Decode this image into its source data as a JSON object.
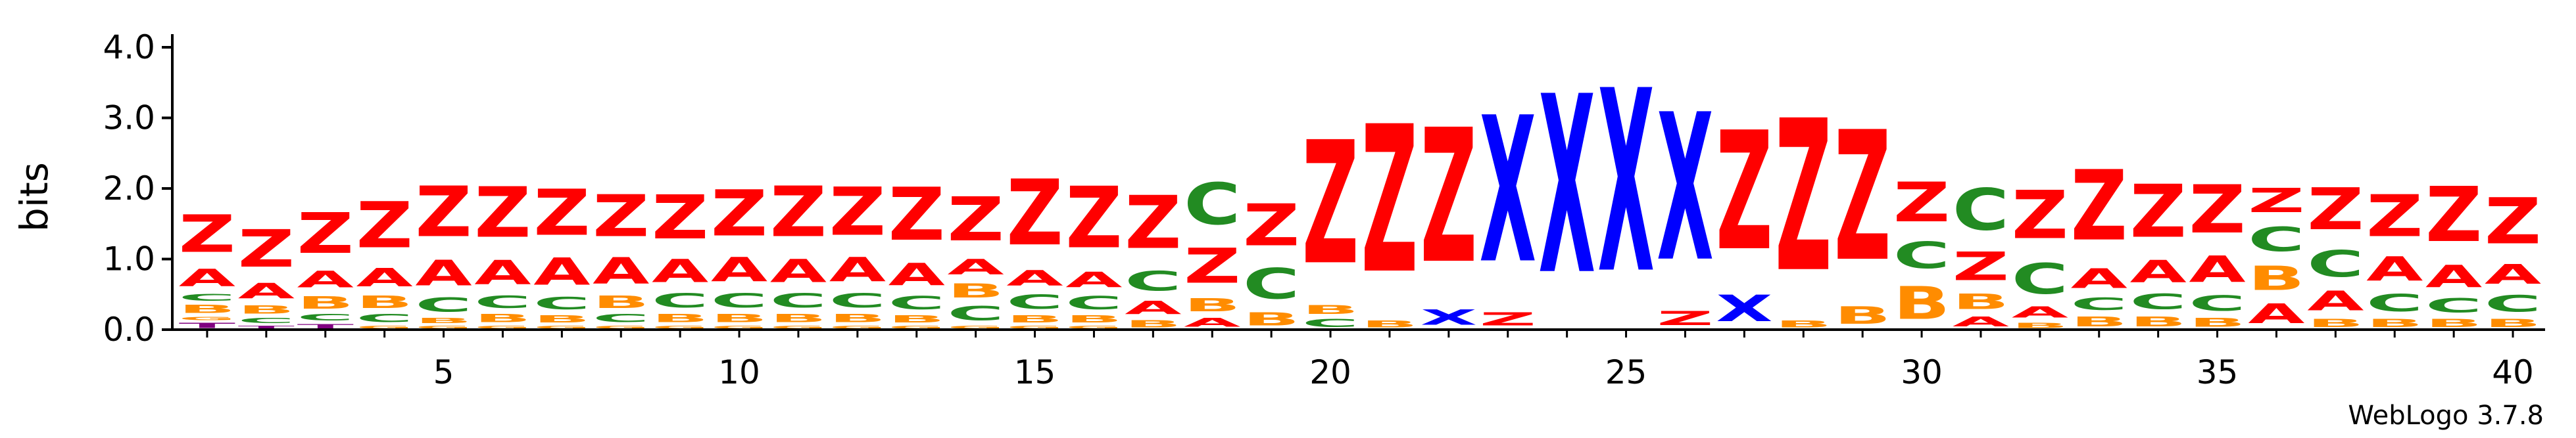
{
  "chart_data": {
    "type": "sequence-logo",
    "title": "",
    "xlabel": "",
    "ylabel": "bits",
    "ylim": [
      0,
      4.2
    ],
    "y_ticks": [
      "0.0",
      "1.0",
      "2.0",
      "3.0",
      "4.0"
    ],
    "x_ticks": [
      "5",
      "10",
      "15",
      "20",
      "25",
      "30",
      "35",
      "40"
    ],
    "positions": 40,
    "credit": "WebLogo 3.7.8",
    "colors": {
      "Z": "#ff0000",
      "A": "#ff0000",
      "C": "#228b22",
      "B": "#ff8c00",
      "X": "#0000ff",
      "T": "#800080",
      "G": "#ff8c00"
    },
    "stacks": [
      {
        "pos": 1,
        "letters": [
          [
            "T",
            0.12
          ],
          [
            "G",
            0.08
          ],
          [
            "B",
            0.18
          ],
          [
            "C",
            0.15
          ],
          [
            "A",
            0.4
          ],
          [
            "Z",
            0.85
          ]
        ]
      },
      {
        "pos": 2,
        "letters": [
          [
            "T",
            0.07
          ],
          [
            "C",
            0.12
          ],
          [
            "B",
            0.18
          ],
          [
            "A",
            0.35
          ],
          [
            "Z",
            0.85
          ]
        ]
      },
      {
        "pos": 3,
        "letters": [
          [
            "T",
            0.1
          ],
          [
            "C",
            0.14
          ],
          [
            "B",
            0.28
          ],
          [
            "A",
            0.38
          ],
          [
            "Z",
            0.92
          ]
        ]
      },
      {
        "pos": 4,
        "letters": [
          [
            "G",
            0.07
          ],
          [
            "C",
            0.18
          ],
          [
            "B",
            0.28
          ],
          [
            "A",
            0.42
          ],
          [
            "Z",
            1.05
          ]
        ]
      },
      {
        "pos": 5,
        "letters": [
          [
            "G",
            0.07
          ],
          [
            "B",
            0.12
          ],
          [
            "C",
            0.32
          ],
          [
            "A",
            0.58
          ],
          [
            "Z",
            1.15
          ]
        ]
      },
      {
        "pos": 6,
        "letters": [
          [
            "G",
            0.07
          ],
          [
            "B",
            0.18
          ],
          [
            "C",
            0.28
          ],
          [
            "A",
            0.55
          ],
          [
            "Z",
            1.15
          ]
        ]
      },
      {
        "pos": 7,
        "letters": [
          [
            "G",
            0.07
          ],
          [
            "B",
            0.16
          ],
          [
            "C",
            0.28
          ],
          [
            "A",
            0.62
          ],
          [
            "Z",
            1.05
          ]
        ]
      },
      {
        "pos": 8,
        "letters": [
          [
            "G",
            0.07
          ],
          [
            "C",
            0.18
          ],
          [
            "B",
            0.28
          ],
          [
            "A",
            0.6
          ],
          [
            "Z",
            0.95
          ]
        ]
      },
      {
        "pos": 9,
        "letters": [
          [
            "G",
            0.07
          ],
          [
            "B",
            0.18
          ],
          [
            "C",
            0.32
          ],
          [
            "A",
            0.52
          ],
          [
            "Z",
            1.0
          ]
        ]
      },
      {
        "pos": 10,
        "letters": [
          [
            "G",
            0.07
          ],
          [
            "B",
            0.18
          ],
          [
            "C",
            0.32
          ],
          [
            "A",
            0.55
          ],
          [
            "Z",
            1.05
          ]
        ]
      },
      {
        "pos": 11,
        "letters": [
          [
            "G",
            0.07
          ],
          [
            "B",
            0.18
          ],
          [
            "C",
            0.32
          ],
          [
            "A",
            0.52
          ],
          [
            "Z",
            1.15
          ]
        ]
      },
      {
        "pos": 12,
        "letters": [
          [
            "G",
            0.07
          ],
          [
            "B",
            0.18
          ],
          [
            "C",
            0.32
          ],
          [
            "A",
            0.55
          ],
          [
            "Z",
            1.1
          ]
        ]
      },
      {
        "pos": 13,
        "letters": [
          [
            "G",
            0.07
          ],
          [
            "B",
            0.16
          ],
          [
            "C",
            0.3
          ],
          [
            "A",
            0.5
          ],
          [
            "Z",
            1.2
          ]
        ]
      },
      {
        "pos": 14,
        "letters": [
          [
            "G",
            0.07
          ],
          [
            "C",
            0.32
          ],
          [
            "B",
            0.32
          ],
          [
            "A",
            0.35
          ],
          [
            "Z",
            1.0
          ]
        ]
      },
      {
        "pos": 15,
        "letters": [
          [
            "G",
            0.07
          ],
          [
            "B",
            0.16
          ],
          [
            "C",
            0.32
          ],
          [
            "A",
            0.35
          ],
          [
            "Z",
            1.5
          ]
        ]
      },
      {
        "pos": 16,
        "letters": [
          [
            "G",
            0.07
          ],
          [
            "B",
            0.16
          ],
          [
            "C",
            0.3
          ],
          [
            "A",
            0.35
          ],
          [
            "Z",
            1.4
          ]
        ]
      },
      {
        "pos": 17,
        "letters": [
          [
            "B",
            0.16
          ],
          [
            "A",
            0.3
          ],
          [
            "C",
            0.45
          ],
          [
            "Z",
            1.2
          ]
        ]
      },
      {
        "pos": 18,
        "letters": [
          [
            "A",
            0.2
          ],
          [
            "B",
            0.3
          ],
          [
            "Z",
            0.8
          ],
          [
            "C",
            0.95
          ]
        ]
      },
      {
        "pos": 19,
        "letters": [
          [
            "B",
            0.3
          ],
          [
            "C",
            0.7
          ],
          [
            "Z",
            0.95
          ]
        ]
      },
      {
        "pos": 20,
        "letters": [
          [
            "C",
            0.18
          ],
          [
            "B",
            0.2
          ],
          [
            "Z",
            2.8
          ]
        ]
      },
      {
        "pos": 21,
        "letters": [
          [
            "B",
            0.15
          ],
          [
            "Z",
            3.35
          ]
        ]
      },
      {
        "pos": 22,
        "letters": [
          [
            "X",
            0.35
          ],
          [
            "Z",
            3.05
          ]
        ]
      },
      {
        "pos": 23,
        "letters": [
          [
            "Z",
            0.3
          ],
          [
            "X",
            3.32
          ]
        ]
      },
      {
        "pos": 24,
        "letters": [
          [
            "X",
            4.05
          ]
        ]
      },
      {
        "pos": 25,
        "letters": [
          [
            "X",
            4.15
          ]
        ]
      },
      {
        "pos": 26,
        "letters": [
          [
            "Z",
            0.32
          ],
          [
            "X",
            3.35
          ]
        ]
      },
      {
        "pos": 27,
        "letters": [
          [
            "X",
            0.6
          ],
          [
            "Z",
            2.7
          ]
        ]
      },
      {
        "pos": 28,
        "letters": [
          [
            "B",
            0.15
          ],
          [
            "Z",
            3.45
          ]
        ]
      },
      {
        "pos": 29,
        "letters": [
          [
            "B",
            0.4
          ],
          [
            "Z",
            2.95
          ]
        ]
      },
      {
        "pos": 30,
        "letters": [
          [
            "B",
            0.75
          ],
          [
            "C",
            0.6
          ],
          [
            "Z",
            0.9
          ]
        ]
      },
      {
        "pos": 31,
        "letters": [
          [
            "A",
            0.22
          ],
          [
            "B",
            0.35
          ],
          [
            "Z",
            0.65
          ],
          [
            "C",
            0.95
          ]
        ]
      },
      {
        "pos": 32,
        "letters": [
          [
            "B",
            0.12
          ],
          [
            "A",
            0.25
          ],
          [
            "C",
            0.7
          ],
          [
            "Z",
            1.1
          ]
        ]
      },
      {
        "pos": 33,
        "letters": [
          [
            "B",
            0.22
          ],
          [
            "C",
            0.28
          ],
          [
            "A",
            0.45
          ],
          [
            "Z",
            1.6
          ]
        ]
      },
      {
        "pos": 34,
        "letters": [
          [
            "B",
            0.22
          ],
          [
            "C",
            0.35
          ],
          [
            "A",
            0.5
          ],
          [
            "Z",
            1.2
          ]
        ]
      },
      {
        "pos": 35,
        "letters": [
          [
            "B",
            0.2
          ],
          [
            "C",
            0.35
          ],
          [
            "A",
            0.6
          ],
          [
            "Z",
            1.1
          ]
        ]
      },
      {
        "pos": 36,
        "letters": [
          [
            "A",
            0.45
          ],
          [
            "B",
            0.55
          ],
          [
            "C",
            0.55
          ],
          [
            "Z",
            0.55
          ]
        ]
      },
      {
        "pos": 37,
        "letters": [
          [
            "B",
            0.18
          ],
          [
            "A",
            0.45
          ],
          [
            "C",
            0.6
          ],
          [
            "Z",
            0.95
          ]
        ]
      },
      {
        "pos": 38,
        "letters": [
          [
            "B",
            0.18
          ],
          [
            "C",
            0.4
          ],
          [
            "A",
            0.55
          ],
          [
            "Z",
            0.95
          ]
        ]
      },
      {
        "pos": 39,
        "letters": [
          [
            "B",
            0.18
          ],
          [
            "C",
            0.32
          ],
          [
            "A",
            0.5
          ],
          [
            "Z",
            1.25
          ]
        ]
      },
      {
        "pos": 40,
        "letters": [
          [
            "B",
            0.18
          ],
          [
            "C",
            0.38
          ],
          [
            "A",
            0.45
          ],
          [
            "Z",
            1.05
          ]
        ]
      }
    ]
  }
}
